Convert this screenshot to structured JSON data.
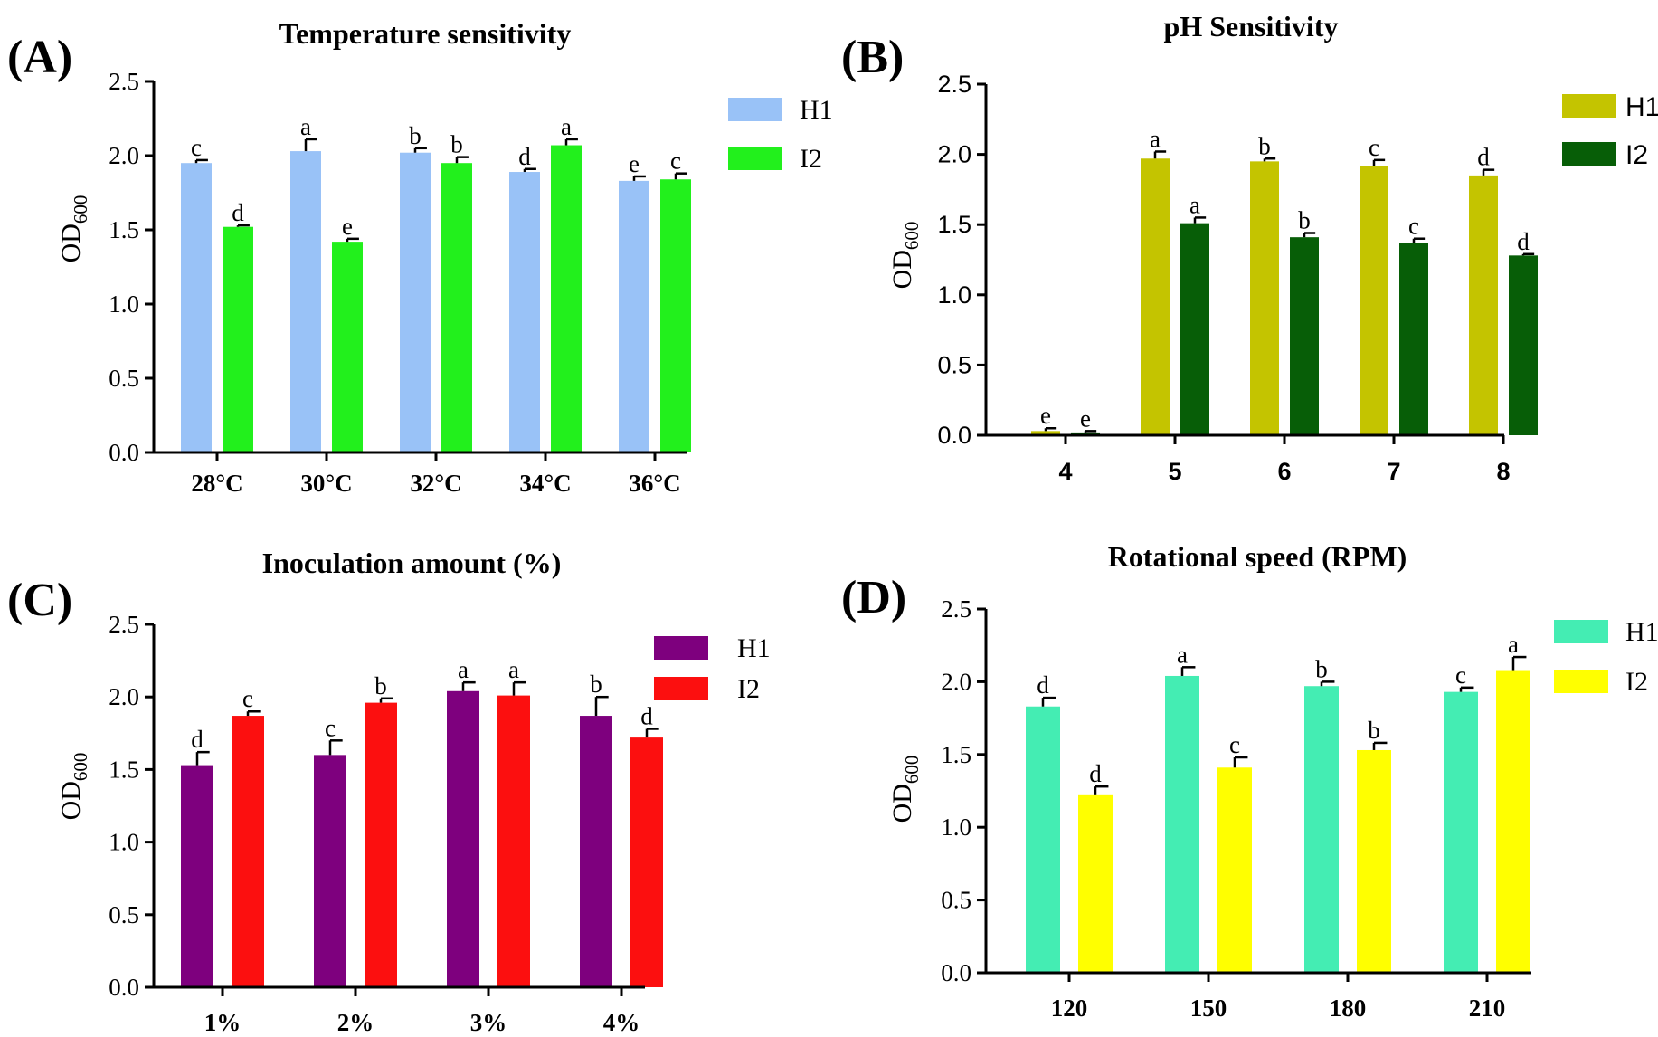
{
  "panels": [
    {
      "panel_label": "(A)",
      "font": "serif",
      "colors": [
        "#99c2f7",
        "#22f01c"
      ],
      "chart_data": {
        "type": "bar",
        "title": "Temperature sensitivity",
        "xlabel": "",
        "ylabel": "OD600",
        "ylabel_main": "OD",
        "ylabel_sub": "600",
        "ylim": [
          0,
          2.5
        ],
        "yticks": [
          "0.0",
          "0.5",
          "1.0",
          "1.5",
          "2.0",
          "2.5"
        ],
        "categories": [
          "28°C",
          "30°C",
          "32°C",
          "34°C",
          "36°C"
        ],
        "series": [
          {
            "name": "H1",
            "values": [
              1.95,
              2.03,
              2.02,
              1.89,
              1.83
            ],
            "errors": [
              0.02,
              0.08,
              0.03,
              0.02,
              0.03
            ],
            "letters": [
              "c",
              "a",
              "b",
              "d",
              "e"
            ]
          },
          {
            "name": "I2",
            "values": [
              1.52,
              1.42,
              1.95,
              2.07,
              1.84
            ],
            "errors": [
              0.01,
              0.02,
              0.04,
              0.04,
              0.04
            ],
            "letters": [
              "d",
              "e",
              "b",
              "a",
              "c"
            ]
          }
        ]
      }
    },
    {
      "panel_label": "(B)",
      "font": "sans",
      "colors": [
        "#c4c400",
        "#075e07"
      ],
      "chart_data": {
        "type": "bar",
        "title": "pH Sensitivity",
        "xlabel": "",
        "ylabel": "OD600",
        "ylabel_main": "OD",
        "ylabel_sub": "600",
        "ylim": [
          0,
          2.5
        ],
        "yticks": [
          "0.0",
          "0.5",
          "1.0",
          "1.5",
          "2.0",
          "2.5"
        ],
        "categories": [
          "4",
          "5",
          "6",
          "7",
          "8"
        ],
        "series": [
          {
            "name": "H1",
            "values": [
              0.03,
              1.97,
              1.95,
              1.92,
              1.85
            ],
            "errors": [
              0.02,
              0.05,
              0.02,
              0.04,
              0.04
            ],
            "letters": [
              "e",
              "a",
              "b",
              "c",
              "d"
            ]
          },
          {
            "name": "I2",
            "values": [
              0.02,
              1.51,
              1.41,
              1.37,
              1.28
            ],
            "errors": [
              0.01,
              0.04,
              0.03,
              0.03,
              0.01
            ],
            "letters": [
              "e",
              "a",
              "b",
              "c",
              "d"
            ]
          }
        ]
      }
    },
    {
      "panel_label": "(C)",
      "font": "serif",
      "colors": [
        "#7e007e",
        "#fc0f0f"
      ],
      "chart_data": {
        "type": "bar",
        "title": "Inoculation amount (%)",
        "xlabel": "",
        "ylabel": "OD600",
        "ylabel_main": "OD",
        "ylabel_sub": "600",
        "ylim": [
          0,
          2.5
        ],
        "yticks": [
          "0.0",
          "0.5",
          "1.0",
          "1.5",
          "2.0",
          "2.5"
        ],
        "categories": [
          "1%",
          "2%",
          "3%",
          "4%"
        ],
        "series": [
          {
            "name": "H1",
            "values": [
              1.53,
              1.6,
              2.04,
              1.87
            ],
            "errors": [
              0.09,
              0.1,
              0.06,
              0.13
            ],
            "letters": [
              "d",
              "c",
              "a",
              "b"
            ]
          },
          {
            "name": "I2",
            "values": [
              1.87,
              1.96,
              2.01,
              1.72
            ],
            "errors": [
              0.03,
              0.03,
              0.09,
              0.06
            ],
            "letters": [
              "c",
              "b",
              "a",
              "d"
            ]
          }
        ]
      }
    },
    {
      "panel_label": "(D)",
      "font": "serif",
      "colors": [
        "#44edb3",
        "#ffff00"
      ],
      "chart_data": {
        "type": "bar",
        "title": "Rotational speed (RPM)",
        "xlabel": "",
        "ylabel": "OD600",
        "ylabel_main": "OD",
        "ylabel_sub": "600",
        "ylim": [
          0,
          2.5
        ],
        "yticks": [
          "0.0",
          "0.5",
          "1.0",
          "1.5",
          "2.0",
          "2.5"
        ],
        "categories": [
          "120",
          "150",
          "180",
          "210"
        ],
        "series": [
          {
            "name": "H1",
            "values": [
              1.83,
              2.04,
              1.97,
              1.93
            ],
            "errors": [
              0.06,
              0.06,
              0.03,
              0.03
            ],
            "letters": [
              "d",
              "a",
              "b",
              "c"
            ]
          },
          {
            "name": "I2",
            "values": [
              1.22,
              1.41,
              1.53,
              2.08
            ],
            "errors": [
              0.06,
              0.07,
              0.05,
              0.09
            ],
            "letters": [
              "d",
              "c",
              "b",
              "a"
            ]
          }
        ]
      }
    }
  ]
}
